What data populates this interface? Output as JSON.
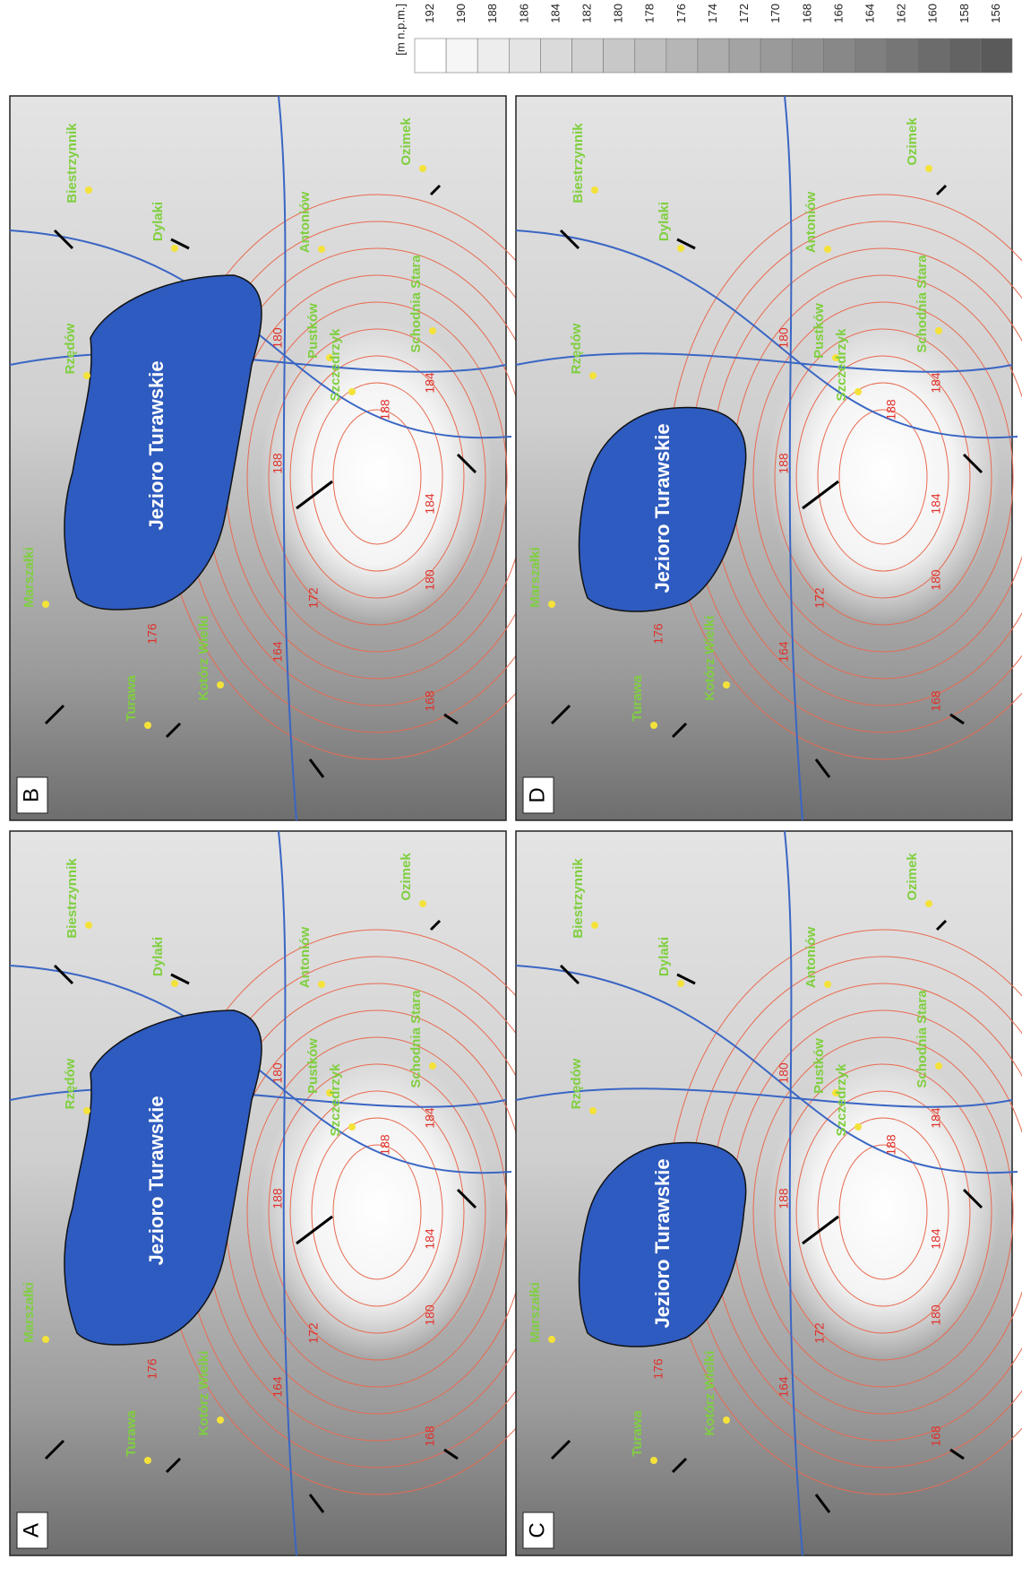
{
  "legend": {
    "unit": "[m n.p.m.]",
    "levels": [
      "192",
      "190",
      "188",
      "186",
      "184",
      "182",
      "180",
      "178",
      "176",
      "174",
      "172",
      "170",
      "168",
      "166",
      "164",
      "162",
      "160",
      "158",
      "156"
    ]
  },
  "panels": [
    {
      "label": "B",
      "lake": "Jezioro Turawskie",
      "places": [
        "Turawa",
        "Marszałki",
        "Rzędów",
        "Dylaki",
        "Biestrzynnik",
        "Ozimek",
        "Antoniów",
        "Pustków",
        "Szczedrzyk",
        "Schodnia Stara",
        "Kotórz Wielki"
      ],
      "contours": [
        "164",
        "168",
        "172",
        "176",
        "180",
        "184",
        "188",
        "188",
        "184",
        "180"
      ]
    },
    {
      "label": "D",
      "lake": "Jezioro Turawskie",
      "places": [
        "Turawa",
        "Marszałki",
        "Rzędów",
        "Dylaki",
        "Biestrzynnik",
        "Ozimek",
        "Antoniów",
        "Pustków",
        "Szczedrzyk",
        "Schodnia Stara",
        "Kotórz Wielki"
      ],
      "contours": [
        "164",
        "168",
        "172",
        "176",
        "180",
        "184",
        "188",
        "188",
        "184",
        "180"
      ]
    },
    {
      "label": "A",
      "lake": "Jezioro Turawskie",
      "places": [
        "Turawa",
        "Marszałki",
        "Rzędów",
        "Dylaki",
        "Biestrzynnik",
        "Ozimek",
        "Antoniów",
        "Pustków",
        "Szczedrzyk",
        "Schodnia Stara",
        "Kotórz Wielki"
      ],
      "contours": [
        "164",
        "168",
        "172",
        "176",
        "180",
        "184",
        "188",
        "188",
        "184",
        "180"
      ]
    },
    {
      "label": "C",
      "lake": "Jezioro Turawskie",
      "places": [
        "Turawa",
        "Marszałki",
        "Rzędów",
        "Dylaki",
        "Biestrzynnik",
        "Ozimek",
        "Antoniów",
        "Pustków",
        "Szczedrzyk",
        "Schodnia Stara",
        "Kotórz Wielki"
      ],
      "contours": [
        "164",
        "168",
        "172",
        "176",
        "180",
        "184",
        "188",
        "188",
        "184",
        "180"
      ]
    }
  ]
}
